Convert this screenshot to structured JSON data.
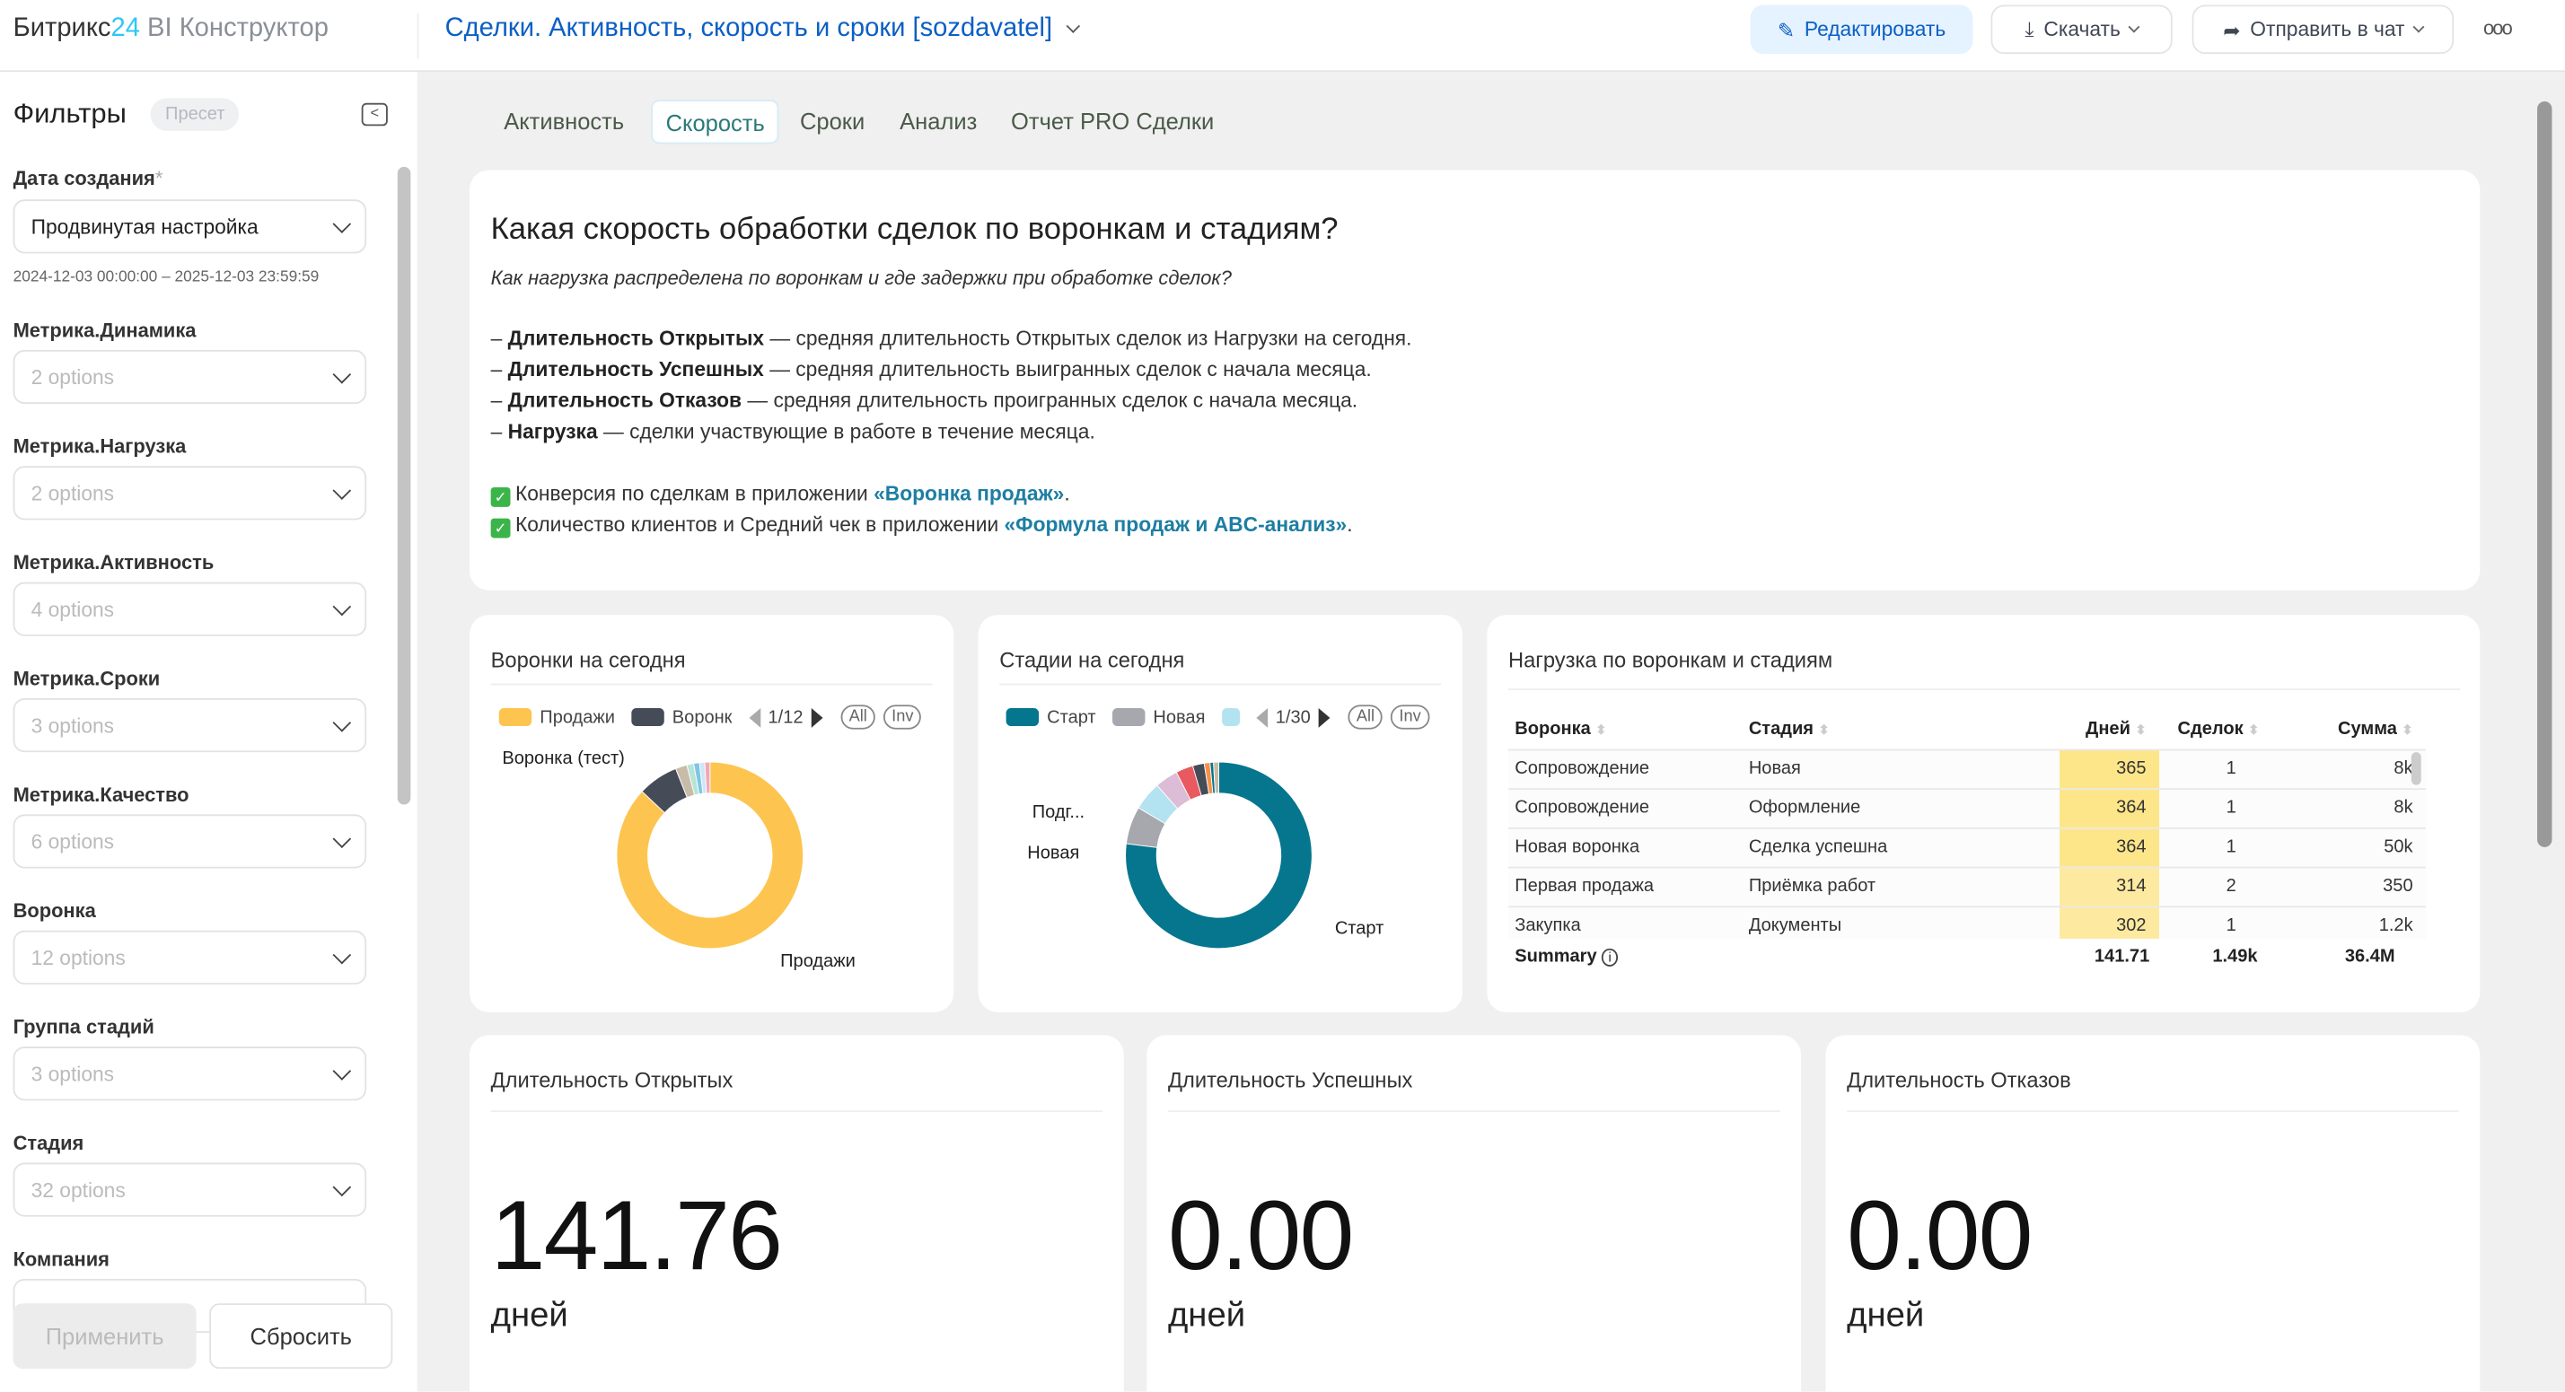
{
  "header": {
    "logo_brand": "Битрикс",
    "logo_num": "24",
    "logo_product": "BI Конструктор",
    "title": "Сделки. Активность, скорость и сроки [sozdavatel]",
    "edit": "Редактировать",
    "download": "Скачать",
    "send": "Отправить в чат",
    "more": "ooo"
  },
  "sidebar": {
    "title": "Фильтры",
    "preset": "Пресет",
    "date_label": "Дата создания",
    "required": "*",
    "date_value": "Продвинутая настройка",
    "date_range": "2024-12-03 00:00:00 – 2025-12-03 23:59:59",
    "filters": [
      {
        "label": "Метрика.Динамика",
        "value": "2 options"
      },
      {
        "label": "Метрика.Нагрузка",
        "value": "2 options"
      },
      {
        "label": "Метрика.Активность",
        "value": "4 options"
      },
      {
        "label": "Метрика.Сроки",
        "value": "3 options"
      },
      {
        "label": "Метрика.Качество",
        "value": "6 options"
      },
      {
        "label": "Воронка",
        "value": "12 options"
      },
      {
        "label": "Группа стадий",
        "value": "3 options"
      },
      {
        "label": "Стадия",
        "value": "32 options"
      },
      {
        "label": "Компания",
        "value": ""
      }
    ],
    "apply": "Применить",
    "reset": "Сбросить"
  },
  "tabs": [
    {
      "label": "Активность"
    },
    {
      "label": "Скорость",
      "active": true
    },
    {
      "label": "Сроки"
    },
    {
      "label": "Анализ"
    },
    {
      "label": "Отчет PRO Сделки"
    }
  ],
  "intro": {
    "title": "Какая скорость обработки сделок по воронкам и стадиям?",
    "subtitle": "Как нагрузка распределена по воронкам и где задержки при обработке сделок?",
    "items": [
      {
        "term": "Длительность Открытых",
        "text": " — средняя длительность Открытых сделок из Нагрузки на сегодня."
      },
      {
        "term": "Длительность Успешных",
        "text": " — средняя длительность выигранных сделок с начала месяца."
      },
      {
        "term": "Длительность Отказов",
        "text": " — средняя длительность проигранных сделок с начала месяца."
      },
      {
        "term": "Нагрузка",
        "text": " — сделки участвующие в работе в течение месяца."
      }
    ],
    "links": [
      {
        "text": "Конверсия по сделкам в приложении ",
        "link": "«Воронка продаж»"
      },
      {
        "text": "Количество клиентов и Средний чек в приложении ",
        "link": "«Формула продаж и ABC-анализ»"
      }
    ]
  },
  "chart_data": [
    {
      "type": "pie",
      "title": "Воронки на сегодня",
      "legend": [
        "Продажи",
        "Воронк"
      ],
      "page": "1/12",
      "all": "All",
      "inv": "Inv",
      "slices": [
        {
          "label": "Продажи",
          "value": 87,
          "color": "#fdc54f"
        },
        {
          "label": "Воронка (тест)",
          "value": 7,
          "color": "#454c58"
        },
        {
          "label": "",
          "value": 2,
          "color": "#c8bca8"
        },
        {
          "label": "",
          "value": 1.2,
          "color": "#b8e4d8"
        },
        {
          "label": "",
          "value": 1,
          "color": "#7fc6e4"
        },
        {
          "label": "",
          "value": 0.9,
          "color": "#cde6f7"
        },
        {
          "label": "",
          "value": 0.9,
          "color": "#f3a7b4"
        }
      ]
    },
    {
      "type": "pie",
      "title": "Стадии на сегодня",
      "legend": [
        "Старт",
        "Новая",
        ""
      ],
      "page": "1/30",
      "all": "All",
      "inv": "Inv",
      "slices": [
        {
          "label": "Старт",
          "value": 77,
          "color": "#05768d"
        },
        {
          "label": "Новая",
          "value": 6.5,
          "color": "#a6a8ae"
        },
        {
          "label": "Подг...",
          "value": 5,
          "color": "#b3e3f0"
        },
        {
          "label": "",
          "value": 4,
          "color": "#dcbcd6"
        },
        {
          "label": "",
          "value": 3,
          "color": "#e85a60"
        },
        {
          "label": "",
          "value": 2,
          "color": "#454c58"
        },
        {
          "label": "",
          "value": 1,
          "color": "#f5914a"
        },
        {
          "label": "",
          "value": 0.6,
          "color": "#05768d"
        },
        {
          "label": "",
          "value": 0.9,
          "color": "#c8bca8"
        }
      ]
    }
  ],
  "table": {
    "title": "Нагрузка по воронкам и стадиям",
    "columns": [
      "Воронка",
      "Стадия",
      "Дней",
      "Сделок",
      "Сумма"
    ],
    "rows": [
      [
        "Сопровождение",
        "Новая",
        "365",
        "1",
        "8k"
      ],
      [
        "Сопровождение",
        "Оформление",
        "364",
        "1",
        "8k"
      ],
      [
        "Новая воронка",
        "Сделка успешна",
        "364",
        "1",
        "50k"
      ],
      [
        "Первая продажа",
        "Приёмка работ",
        "314",
        "2",
        "350"
      ],
      [
        "Закупка",
        "Документы",
        "302",
        "1",
        "1.2k"
      ]
    ],
    "summary": {
      "label": "Summary",
      "days": "141.71",
      "deals": "1.49k",
      "sum": "36.4M"
    },
    "highlight": "#fde68a"
  },
  "kpis": [
    {
      "title": "Длительность Открытых",
      "value": "141.76",
      "unit": "дней"
    },
    {
      "title": "Длительность Успешных",
      "value": "0.00",
      "unit": "дней"
    },
    {
      "title": "Длительность Отказов",
      "value": "0.00",
      "unit": "дней"
    }
  ]
}
